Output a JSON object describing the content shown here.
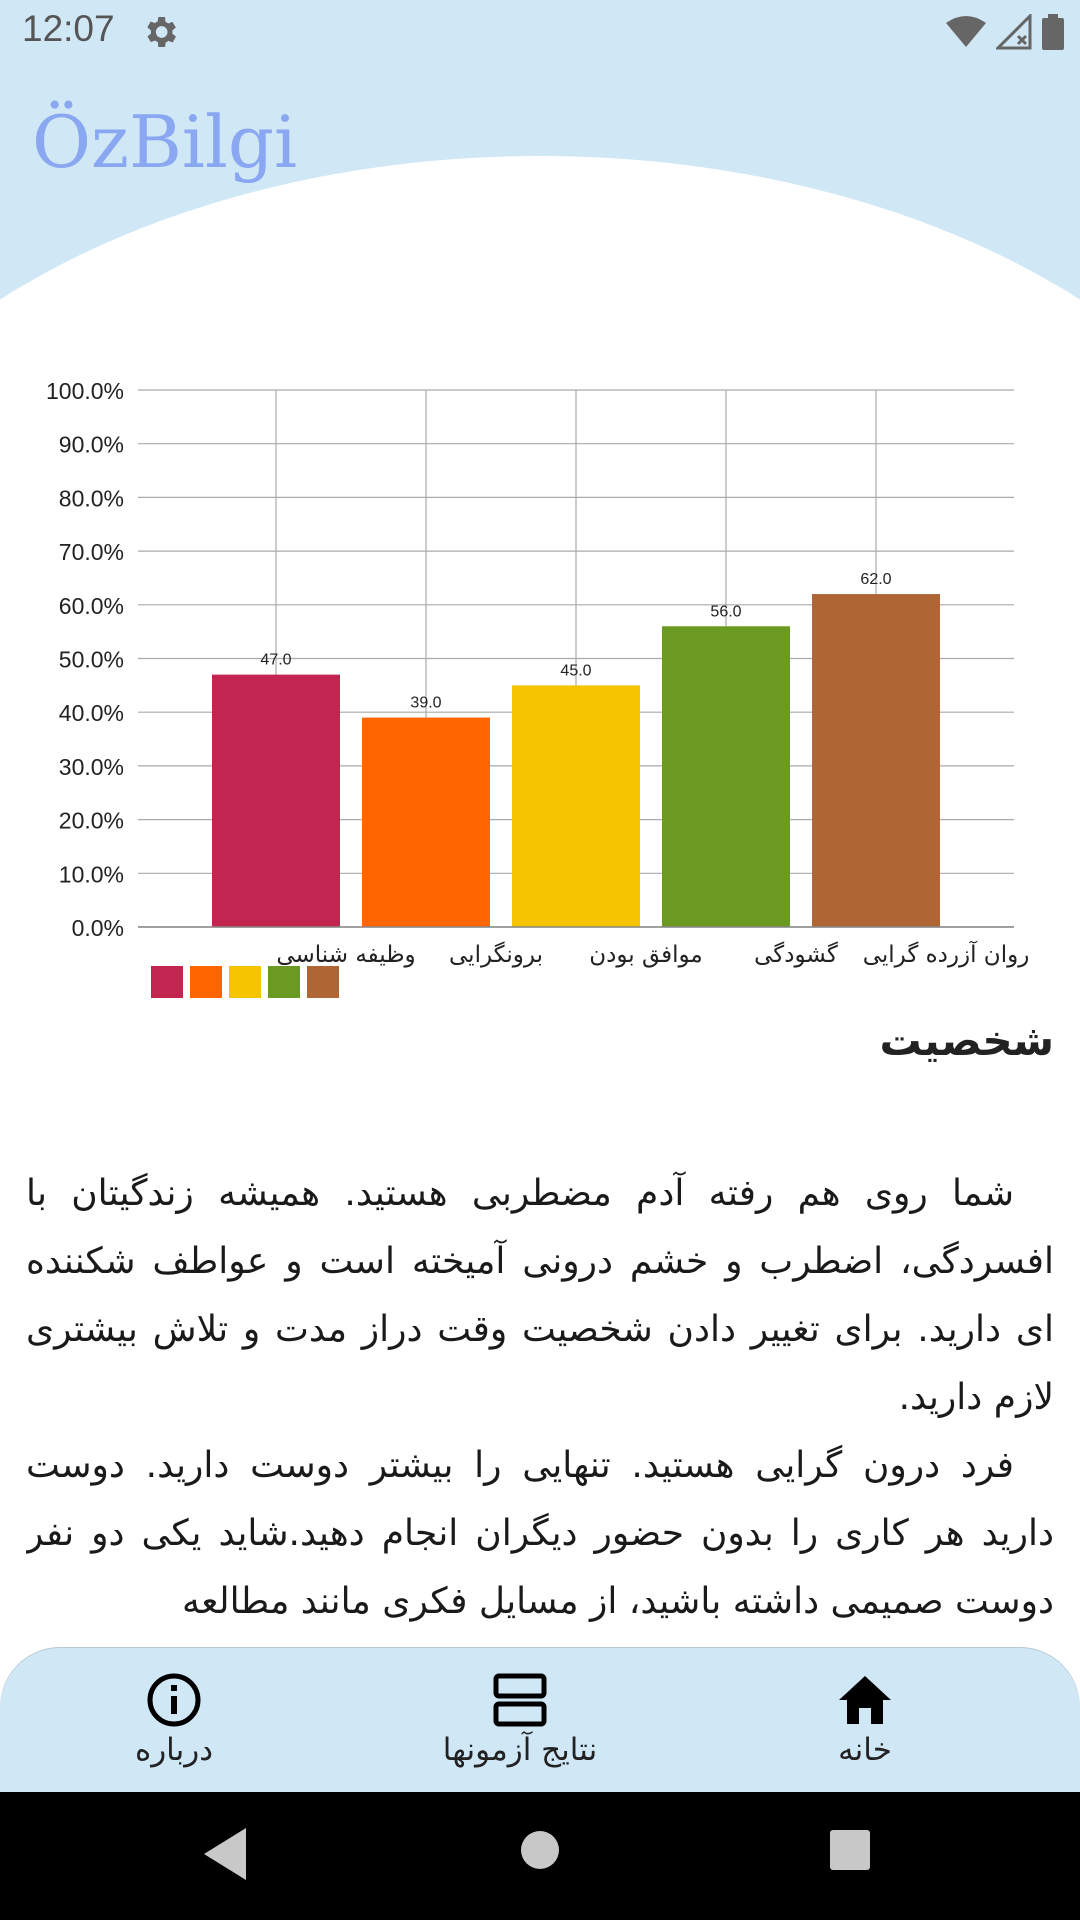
{
  "status_bar": {
    "time": "12:07",
    "icons": [
      "settings-icon",
      "wifi-icon",
      "signal-icon",
      "battery-icon"
    ]
  },
  "header": {
    "title": "ÖzBilgi"
  },
  "chart_data": {
    "type": "bar",
    "categories": [
      "وظیفه شناسی",
      "برونگرایی",
      "موافق بودن",
      "گشودگی",
      "روان آزرده گرایی"
    ],
    "values": [
      47.0,
      39.0,
      45.0,
      56.0,
      62.0
    ],
    "value_labels": [
      "47.0",
      "39.0",
      "45.0",
      "56.0",
      "62.0"
    ],
    "colors": [
      "#c2254f",
      "#ff6600",
      "#f5c400",
      "#6b9a22",
      "#b06534"
    ],
    "ylim": [
      0,
      100
    ],
    "y_ticks": [
      "0.0%",
      "10.0%",
      "20.0%",
      "30.0%",
      "40.0%",
      "50.0%",
      "60.0%",
      "70.0%",
      "80.0%",
      "90.0%",
      "100.0%"
    ],
    "grid": true,
    "legend": "bottom-left"
  },
  "section": {
    "title": "شخصیت",
    "paragraphs": [
      "شما روی هم رفته آدم مضطربی هستید. همیشه زندگیتان با افسردگی، اضطرب و خشم درونی آمیخته است و عواطف شکننده ای دارید. برای تغییر دادن شخصیت وقت دراز مدت و تلاش بیشتری لازم دارید.",
      "فرد درون گرایی هستید. تنهایی را بیشتر دوست دارید. دوست دارید هر کاری را بدون حضور دیگران انجام دهید.شاید یکی دو نفر دوست صمیمی داشته باشید، از مسایل فکری مانند مطالعه"
    ]
  },
  "bottom_nav": {
    "about": "درباره",
    "results": "نتایج آزمونها",
    "home": "خانه"
  },
  "colors": {
    "header_bg": "#d0e7f6",
    "title": "#8aa7f2"
  }
}
